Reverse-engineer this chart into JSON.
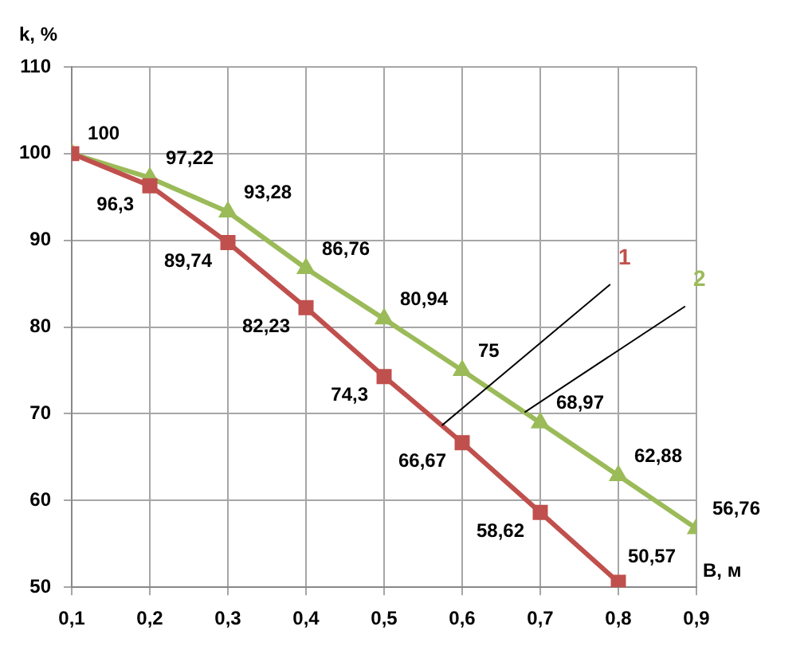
{
  "chart_data": {
    "type": "line",
    "ylabel": "k, %",
    "xlabel": "B, м",
    "x": [
      0.1,
      0.2,
      0.3,
      0.4,
      0.5,
      0.6,
      0.7,
      0.8,
      0.9
    ],
    "xlim": [
      0.1,
      0.9
    ],
    "xticks": [
      {
        "value": 0.1,
        "label": "0,1"
      },
      {
        "value": 0.2,
        "label": "0,2"
      },
      {
        "value": 0.3,
        "label": "0,3"
      },
      {
        "value": 0.4,
        "label": "0,4"
      },
      {
        "value": 0.5,
        "label": "0,5"
      },
      {
        "value": 0.6,
        "label": "0,6"
      },
      {
        "value": 0.7,
        "label": "0,7"
      },
      {
        "value": 0.8,
        "label": "0,8"
      },
      {
        "value": 0.9,
        "label": "0,9"
      }
    ],
    "ylim": [
      50,
      110
    ],
    "yticks": [
      50,
      60,
      70,
      80,
      90,
      100,
      110
    ],
    "grid": true,
    "legend": false,
    "series": [
      {
        "name": "1",
        "color": "#c0504d",
        "marker": "square",
        "values": [
          100,
          96.3,
          89.74,
          82.23,
          74.3,
          66.67,
          58.62,
          50.57,
          null
        ],
        "value_labels": [
          null,
          "96,3",
          "89,74",
          "82,23",
          "74,3",
          "66,67",
          "58,62",
          "50,57",
          null
        ]
      },
      {
        "name": "2",
        "color": "#9bbb59",
        "marker": "triangle",
        "values": [
          100,
          97.22,
          93.28,
          86.76,
          80.94,
          75,
          68.97,
          62.88,
          56.76
        ],
        "value_labels": [
          "100",
          "97,22",
          "93,28",
          "86,76",
          "80,94",
          "75",
          "68,97",
          "62,88",
          "56,76"
        ]
      }
    ]
  }
}
